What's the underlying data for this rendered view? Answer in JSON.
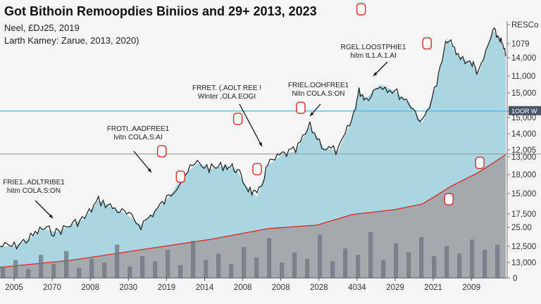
{
  "chart_data": {
    "type": "area",
    "title": "Got Bithoin Remoopdies Biniios and 29+ 2013, 2023",
    "subtitles": [
      "Neel, £Dᴊ25, 2019",
      "Larth Kamey: Zarue, 2013, 2020)"
    ],
    "xlabel": "",
    "ylabel": "",
    "ylim": [
      0,
      20000
    ],
    "grid": false,
    "x_tick_labels": [
      "2005",
      "2070",
      "2008",
      "2030",
      "2019",
      "2014",
      "2008",
      "2008",
      "2028",
      "4034",
      "2029",
      "2021",
      "2009"
    ],
    "y_tick_labels": [
      "RESCo",
      "1079",
      "14,000",
      "11,000",
      "15,000",
      "15,000",
      "14,000",
      "12,005",
      "13,000",
      "18,000",
      "15,000",
      "17,500",
      "25.00",
      "12,500",
      "13,000",
      "0"
    ],
    "reference_lines": [
      {
        "label": "",
        "value": 9680,
        "color": "#999999"
      },
      {
        "label": "1OOR W",
        "value": 13035,
        "color": "#5aaed0"
      }
    ],
    "series": [
      {
        "kind": "price",
        "color": "#1a1a1a",
        "fill": "#a9d6e0",
        "x": [
          0,
          0.028,
          0.056,
          0.083,
          0.111,
          0.139,
          0.167,
          0.194,
          0.222,
          0.25,
          0.278,
          0.306,
          0.333,
          0.361,
          0.389,
          0.417,
          0.444,
          0.465,
          0.486,
          0.507,
          0.528,
          0.556,
          0.583,
          0.611,
          0.639,
          0.667,
          0.694,
          0.708,
          0.722,
          0.75,
          0.778,
          0.806,
          0.833,
          0.861,
          0.882,
          0.903,
          0.931,
          0.944,
          0.972,
          0.986,
          0.997
        ],
        "values": [
          2475,
          2475,
          3025,
          3850,
          3575,
          4125,
          4675,
          6050,
          5500,
          4950,
          4125,
          5225,
          6325,
          7975,
          8965,
          8525,
          8800,
          8525,
          7150,
          6325,
          8800,
          9625,
          9900,
          11825,
          10175,
          9900,
          12375,
          14575,
          14025,
          15125,
          14575,
          13750,
          12100,
          15125,
          18700,
          17325,
          16775,
          15950,
          19250,
          18700,
          17325
        ]
      },
      {
        "kind": "trend",
        "color": "#d93030",
        "fill": "#a3a6ab",
        "x": [
          0,
          0.139,
          0.278,
          0.417,
          0.528,
          0.625,
          0.694,
          0.778,
          0.833,
          0.889,
          0.944,
          0.997
        ],
        "values": [
          825,
          1375,
          2200,
          3025,
          3850,
          4125,
          4950,
          5335,
          5775,
          7150,
          8250,
          9625
        ]
      },
      {
        "kind": "volume",
        "color": "#6e7680",
        "values": [
          900,
          1400,
          700,
          1800,
          1100,
          2100,
          800,
          1500,
          1200,
          2600,
          900,
          1700,
          1300,
          2200,
          1000,
          2900,
          1400,
          1900,
          1100,
          2400,
          1600,
          3100,
          1200,
          2000,
          1500,
          3400,
          1300,
          2300,
          1800,
          3600,
          1400,
          2700,
          2000,
          3200,
          1700,
          2500,
          1900,
          3000,
          2200,
          2600
        ]
      }
    ],
    "markers": [
      {
        "x": 0.319,
        "value": 2300
      },
      {
        "x": 0.356,
        "value": 1840
      },
      {
        "x": 0.469,
        "value": 2890
      },
      {
        "x": 0.507,
        "value": 1975
      },
      {
        "x": 0.593,
        "value": 3090
      },
      {
        "x": 0.712,
        "value": 4880
      },
      {
        "x": 0.842,
        "value": 4260
      },
      {
        "x": 0.885,
        "value": 1430
      },
      {
        "x": 0.946,
        "value": 2090
      }
    ],
    "annotations": [
      {
        "line1": "FRIE1..ADLTRIBE1",
        "line2": "hitm COLA.S:ON"
      },
      {
        "line1": "FROTI..AADFREE1",
        "line2": "lvitn COLA.S:AI"
      },
      {
        "line1": "FRRET. (.AOLT REE !",
        "line2": "Winter ,OLA.EOGI"
      },
      {
        "line1": "FRIEL.OOHFREE1",
        "line2": "Nitn COLA.S:ON"
      },
      {
        "line1": "RGEL.LOOSTPHIE1",
        "line2": "hitm tL1.A.1.AI"
      }
    ]
  }
}
